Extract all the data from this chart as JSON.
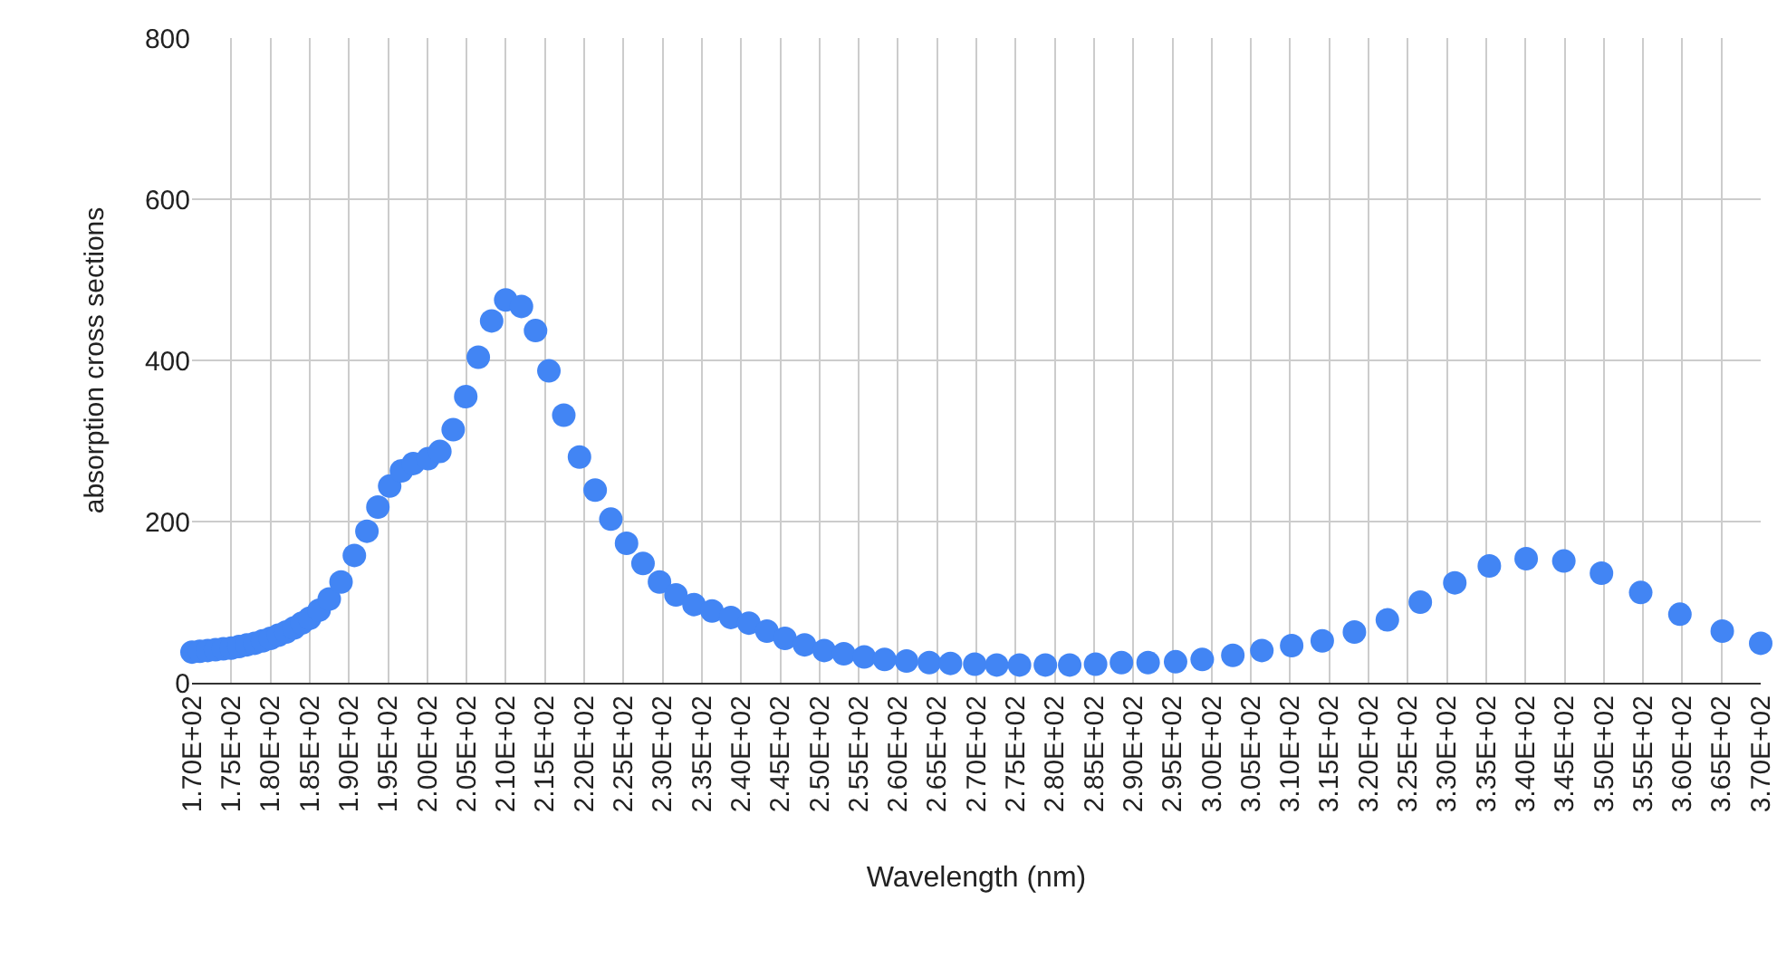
{
  "chart_data": {
    "type": "scatter",
    "xlabel": "Wavelength (nm)",
    "ylabel": "absorption cross sections",
    "marker": "circle",
    "grid": true,
    "legend": false,
    "xlim": [
      170,
      370
    ],
    "xticks": [
      {
        "value": 170,
        "label": "1.70E+02"
      },
      {
        "value": 175,
        "label": "1.75E+02"
      },
      {
        "value": 180,
        "label": "1.80E+02"
      },
      {
        "value": 185,
        "label": "1.85E+02"
      },
      {
        "value": 190,
        "label": "1.90E+02"
      },
      {
        "value": 195,
        "label": "1.95E+02"
      },
      {
        "value": 200,
        "label": "2.00E+02"
      },
      {
        "value": 205,
        "label": "2.05E+02"
      },
      {
        "value": 210,
        "label": "2.10E+02"
      },
      {
        "value": 215,
        "label": "2.15E+02"
      },
      {
        "value": 220,
        "label": "2.20E+02"
      },
      {
        "value": 225,
        "label": "2.25E+02"
      },
      {
        "value": 230,
        "label": "2.30E+02"
      },
      {
        "value": 235,
        "label": "2.35E+02"
      },
      {
        "value": 240,
        "label": "2.40E+02"
      },
      {
        "value": 245,
        "label": "2.45E+02"
      },
      {
        "value": 250,
        "label": "2.50E+02"
      },
      {
        "value": 255,
        "label": "2.55E+02"
      },
      {
        "value": 260,
        "label": "2.60E+02"
      },
      {
        "value": 265,
        "label": "2.65E+02"
      },
      {
        "value": 270,
        "label": "2.70E+02"
      },
      {
        "value": 275,
        "label": "2.75E+02"
      },
      {
        "value": 280,
        "label": "2.80E+02"
      },
      {
        "value": 285,
        "label": "2.85E+02"
      },
      {
        "value": 290,
        "label": "2.90E+02"
      },
      {
        "value": 295,
        "label": "2.95E+02"
      },
      {
        "value": 300,
        "label": "3.00E+02"
      },
      {
        "value": 305,
        "label": "3.05E+02"
      },
      {
        "value": 310,
        "label": "3.10E+02"
      },
      {
        "value": 315,
        "label": "3.15E+02"
      },
      {
        "value": 320,
        "label": "3.20E+02"
      },
      {
        "value": 325,
        "label": "3.25E+02"
      },
      {
        "value": 330,
        "label": "3.30E+02"
      },
      {
        "value": 335,
        "label": "3.35E+02"
      },
      {
        "value": 340,
        "label": "3.40E+02"
      },
      {
        "value": 345,
        "label": "3.45E+02"
      },
      {
        "value": 350,
        "label": "3.50E+02"
      },
      {
        "value": 355,
        "label": "3.55E+02"
      },
      {
        "value": 360,
        "label": "3.60E+02"
      },
      {
        "value": 365,
        "label": "3.65E+02"
      },
      {
        "value": 370,
        "label": "3.70E+02"
      }
    ],
    "ylim": [
      0,
      800
    ],
    "yticks": [
      0,
      200,
      400,
      600,
      800
    ],
    "series": [
      {
        "color": "#4285f4",
        "x": [
          170,
          171,
          172,
          173,
          174,
          175,
          176,
          177,
          178,
          179,
          180,
          181,
          182,
          183,
          184,
          185,
          186.2,
          187.5,
          189,
          190.7,
          192.3,
          193.7,
          195.2,
          196.7,
          198.2,
          200.1,
          201.6,
          203.3,
          204.9,
          206.5,
          208.2,
          210,
          212,
          213.8,
          215.5,
          217.4,
          219.4,
          221.4,
          223.4,
          225.4,
          227.5,
          229.6,
          231.7,
          234,
          236.3,
          238.7,
          241,
          243.3,
          245.6,
          248.1,
          250.6,
          253.1,
          255.7,
          258.3,
          261.1,
          264,
          266.7,
          269.8,
          272.6,
          275.5,
          278.8,
          281.9,
          285.2,
          288.5,
          291.9,
          295.4,
          298.8,
          302.7,
          306.4,
          310.2,
          314.1,
          318.2,
          322.4,
          326.6,
          331,
          335.4,
          340.1,
          344.9,
          349.7,
          354.7,
          359.7,
          365.1,
          370
        ],
        "values": [
          38,
          39,
          40,
          41,
          42,
          43,
          45,
          47,
          49,
          52,
          55,
          59,
          63,
          68,
          74,
          80,
          90,
          104,
          125,
          158,
          188,
          218,
          244,
          263,
          272,
          278,
          287,
          314,
          355,
          404,
          449,
          475,
          467,
          437,
          387,
          332,
          280,
          239,
          203,
          173,
          148,
          125,
          109,
          97,
          89,
          81,
          74,
          64,
          55,
          47,
          40,
          36,
          32,
          29,
          27,
          25,
          24,
          23,
          22,
          22,
          22,
          22,
          23,
          25,
          25,
          26,
          29,
          34,
          40,
          46,
          52,
          63,
          78,
          100,
          124,
          145,
          154,
          151,
          136,
          112,
          85,
          64,
          49
        ]
      }
    ]
  }
}
